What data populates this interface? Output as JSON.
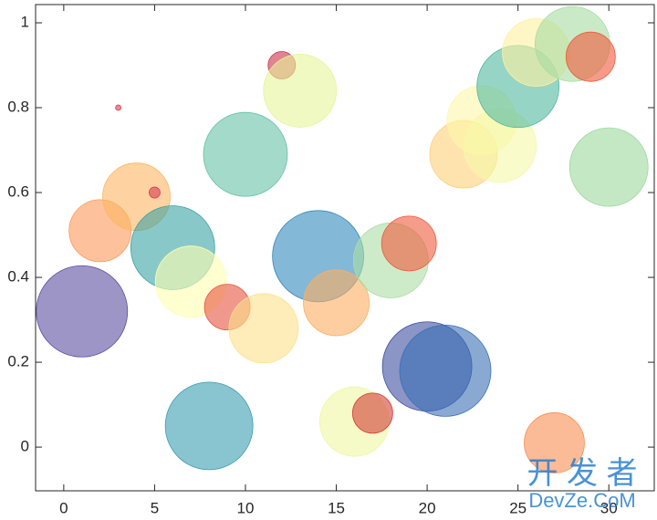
{
  "chart_data": {
    "type": "bubble",
    "x": [
      1,
      2,
      3,
      4,
      5,
      6,
      7,
      8,
      9,
      10,
      11,
      12,
      13,
      14,
      15,
      16,
      17,
      18,
      19,
      20,
      21,
      22,
      23,
      24,
      25,
      26,
      27,
      28,
      29,
      30
    ],
    "values": [
      0.32,
      0.51,
      0.8,
      0.59,
      0.6,
      0.47,
      0.39,
      0.05,
      0.33,
      0.69,
      0.28,
      0.9,
      0.84,
      0.45,
      0.34,
      0.06,
      0.08,
      0.44,
      0.48,
      0.19,
      0.18,
      0.69,
      0.77,
      0.71,
      0.85,
      0.93,
      0.01,
      0.95,
      0.92,
      0.66
    ],
    "sizes": [
      50,
      34,
      3,
      37,
      6,
      46,
      39,
      48,
      25,
      46,
      38,
      15,
      40,
      50,
      36,
      38,
      22,
      41,
      30,
      49,
      50,
      37,
      38,
      40,
      45,
      37,
      33,
      41,
      27,
      43
    ],
    "colors": [
      "#5e4fa2",
      "#fb9a5a",
      "#d53e4f",
      "#fdb563",
      "#d53e4f",
      "#3aa3a3",
      "#ffffb0",
      "#3a9db3",
      "#e8543f",
      "#66c2a5",
      "#fee08b",
      "#c8324a",
      "#e6f598",
      "#3288bd",
      "#fdae61",
      "#eef7a0",
      "#d3403a",
      "#abdda4",
      "#f05a3c",
      "#3d4fa0",
      "#3a6fb5",
      "#fed07a",
      "#fdf6a8",
      "#f5f8a8",
      "#50b9a0",
      "#fff0a0",
      "#f98e52",
      "#a7dca2",
      "#f0583a",
      "#9dd89c"
    ],
    "xlim": [
      -1.55,
      32.5
    ],
    "ylim": [
      -0.103,
      1.043
    ],
    "xticks": [
      0,
      5,
      10,
      15,
      20,
      25,
      30
    ],
    "yticks": [
      0,
      0.2,
      0.4,
      0.6,
      0.8,
      1
    ],
    "watermark": [
      "开 发 者",
      "DevZe.CoM"
    ]
  }
}
